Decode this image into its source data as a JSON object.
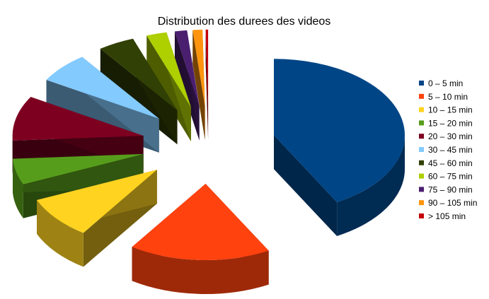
{
  "chart_data": {
    "type": "pie",
    "title": "Distribution des durees des videos",
    "exploded": true,
    "three_d": true,
    "legend_position": "right",
    "categories": [
      "0 – 5 min",
      "5 – 10 min",
      "10 – 15 min",
      "15 – 20 min",
      "20 – 30 min",
      "30 – 45 min",
      "45 – 60 min",
      "60 – 75 min",
      "75 – 90 min",
      "90 – 105 min",
      "> 105 min"
    ],
    "values": [
      42.0,
      17.5,
      9.0,
      5.5,
      9.5,
      6.5,
      4.5,
      2.5,
      1.5,
      1.2,
      0.3
    ],
    "colors": [
      "#004586",
      "#ff420e",
      "#ffd320",
      "#579d1c",
      "#7e0021",
      "#83caff",
      "#314004",
      "#aecf00",
      "#4b1f6f",
      "#ff950e",
      "#c5000b"
    ]
  }
}
